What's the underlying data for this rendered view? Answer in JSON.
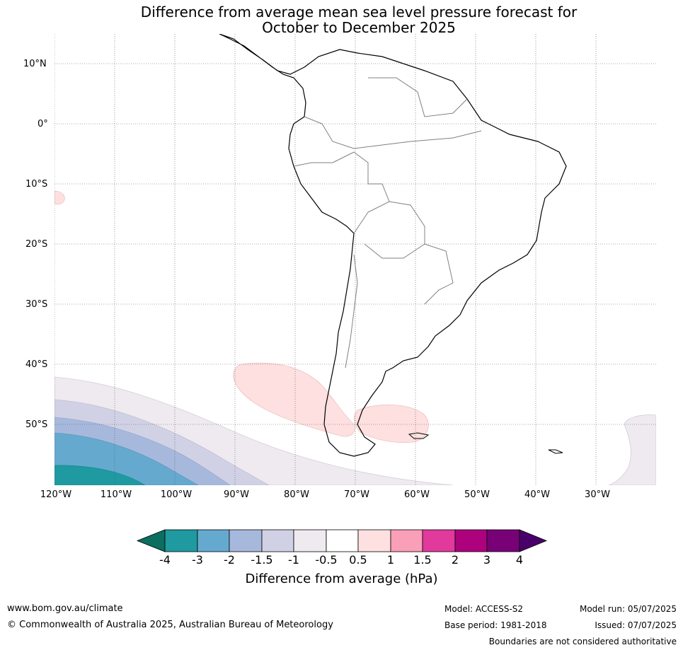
{
  "title": {
    "line1": "Difference from average mean sea level pressure forecast for",
    "line2": "October to December 2025"
  },
  "map": {
    "lat_labels": [
      "10°N",
      "0°",
      "10°S",
      "20°S",
      "30°S",
      "40°S",
      "50°S"
    ],
    "lon_labels": [
      "120°W",
      "110°W",
      "100°W",
      "90°W",
      "80°W",
      "70°W",
      "60°W",
      "50°W",
      "40°W",
      "30°W"
    ],
    "gridlines": "dotted",
    "region": "South America and adjacent oceans"
  },
  "colorbar": {
    "label": "Difference from average (hPa)",
    "tick_labels": [
      "-4",
      "-3",
      "-2",
      "-1.5",
      "-1",
      "-0.5",
      "0.5",
      "1",
      "1.5",
      "2",
      "3",
      "4"
    ],
    "colors": {
      "below_-4": "#0b6e5e",
      "-4_to_-3": "#1e9aa0",
      "-3_to_-2": "#66a9cf",
      "-2_to_-1.5": "#a6b9dc",
      "-1.5_to_-1": "#d1d1e6",
      "-1_to_-0.5": "#efe9f0",
      "-0.5_to_0.5": "#ffffff",
      "0.5_to_1": "#fde0df",
      "1_to_1.5": "#f99fb8",
      "1.5_to_2": "#e1399c",
      "2_to_3": "#ad017e",
      "3_to_4": "#790177",
      "above_4": "#49006a"
    }
  },
  "footer": {
    "website": "www.bom.gov.au/climate",
    "copyright": "© Commonwealth of Australia 2025, Australian Bureau of Meteorology",
    "model": "Model: ACCESS-S2",
    "base_period": "Base period: 1981-2018",
    "model_run": "Model run: 05/07/2025",
    "issued": "Issued: 07/07/2025",
    "disclaimer": "Boundaries are not considered authoritative"
  }
}
